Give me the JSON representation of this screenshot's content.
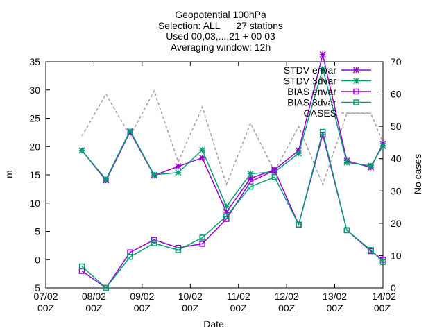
{
  "chart_data": {
    "type": "line",
    "title_lines": [
      "Geopotential 100hPa",
      "Selection: ALL      27 stations",
      "Used 00,03,...,21 + 00 03",
      "Averaging window: 12h"
    ],
    "xlabel": "Date",
    "ylabel": "m",
    "y2label": "No cases",
    "x_ticks": [
      {
        "x": 0,
        "line1": "07/02",
        "line2": "00Z"
      },
      {
        "x": 1,
        "line1": "08/02",
        "line2": "00Z"
      },
      {
        "x": 2,
        "line1": "09/02",
        "line2": "00Z"
      },
      {
        "x": 3,
        "line1": "10/02",
        "line2": "00Z"
      },
      {
        "x": 4,
        "line1": "11/02",
        "line2": "00Z"
      },
      {
        "x": 5,
        "line1": "12/02",
        "line2": "00Z"
      },
      {
        "x": 6,
        "line1": "13/02",
        "line2": "00Z"
      },
      {
        "x": 7,
        "line1": "14/02",
        "line2": "00Z"
      }
    ],
    "xlim": [
      0,
      7
    ],
    "ylim": [
      -5,
      35
    ],
    "y_ticks": [
      -5,
      0,
      5,
      10,
      15,
      20,
      25,
      30,
      35
    ],
    "y2lim": [
      0,
      70
    ],
    "y2_ticks": [
      0,
      10,
      20,
      30,
      40,
      50,
      60,
      70
    ],
    "legend_position": "top-right",
    "series": [
      {
        "name": "STDV envar",
        "color": "#9400d3",
        "marker": "star",
        "axis": "y1",
        "x": [
          0.75,
          1.25,
          1.75,
          2.25,
          2.75,
          3.25,
          3.75,
          4.25,
          4.75,
          5.25,
          5.75,
          6.25,
          6.75,
          7.0
        ],
        "values": [
          19.3,
          14.0,
          22.6,
          14.9,
          16.5,
          18.0,
          8.4,
          14.4,
          15.9,
          19.3,
          36.3,
          17.5,
          16.3,
          20.5
        ]
      },
      {
        "name": "STDV 3dvar",
        "color": "#009e73",
        "marker": "star",
        "axis": "y1",
        "x": [
          0.75,
          1.25,
          1.75,
          2.25,
          2.75,
          3.25,
          3.75,
          4.25,
          4.75,
          5.25,
          5.75,
          6.25,
          6.75,
          7.0
        ],
        "values": [
          19.3,
          14.2,
          22.8,
          15.0,
          15.4,
          19.4,
          9.4,
          15.2,
          15.5,
          18.8,
          33.8,
          17.2,
          16.6,
          20.1
        ]
      },
      {
        "name": "BIAS envar",
        "color": "#9400d3",
        "marker": "square",
        "axis": "y1",
        "x": [
          0.75,
          1.25,
          1.75,
          2.25,
          2.75,
          3.25,
          3.75,
          4.25,
          4.75,
          5.25,
          5.75,
          6.25,
          6.75,
          7.0
        ],
        "values": [
          -2.0,
          -5.0,
          1.3,
          3.5,
          2.1,
          2.8,
          7.2,
          13.8,
          15.8,
          6.2,
          22.1,
          5.2,
          1.5,
          0.0
        ]
      },
      {
        "name": "BIAS 3dvar",
        "color": "#009e73",
        "marker": "square",
        "axis": "y1",
        "x": [
          0.75,
          1.25,
          1.75,
          2.25,
          2.75,
          3.25,
          3.75,
          4.25,
          4.75,
          5.25,
          5.75,
          6.25,
          6.75,
          7.0
        ],
        "values": [
          -1.2,
          -5.0,
          0.5,
          2.9,
          1.7,
          3.9,
          7.7,
          12.9,
          14.6,
          6.2,
          22.6,
          5.2,
          1.7,
          -0.4
        ]
      },
      {
        "name": "CASES",
        "color": "#a0a0a0",
        "marker": "none",
        "dashed": true,
        "axis": "y2",
        "x": [
          0.75,
          1.25,
          1.75,
          2.25,
          2.75,
          3.25,
          3.75,
          4.25,
          4.75,
          5.25,
          5.75,
          6.25,
          6.75,
          7.0
        ],
        "values": [
          47,
          60,
          47,
          61,
          39,
          56,
          32,
          51,
          36,
          50,
          32,
          54,
          54,
          45
        ]
      }
    ]
  }
}
